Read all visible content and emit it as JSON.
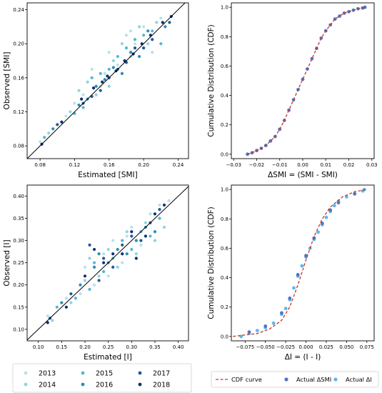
{
  "chart_data": [
    {
      "type": "scatter",
      "xlabel": "Estimated [SMI]",
      "ylabel": "Observed [SMI]",
      "xlim": [
        0.065,
        0.252
      ],
      "ylim": [
        0.065,
        0.248
      ],
      "xticks": [
        "0.08",
        "0.12",
        "0.16",
        "0.20",
        "0.24"
      ],
      "yticks": [
        "0.08",
        "0.12",
        "0.16",
        "0.20",
        "0.24"
      ],
      "reference_line": "y = x",
      "grid": false,
      "series": [
        {
          "name": "2013",
          "color": "#b8e2e9",
          "points": [
            [
              0.08,
              0.085
            ],
            [
              0.11,
              0.115
            ],
            [
              0.13,
              0.14
            ],
            [
              0.14,
              0.17
            ],
            [
              0.15,
              0.15
            ],
            [
              0.16,
              0.19
            ],
            [
              0.17,
              0.175
            ],
            [
              0.18,
              0.21
            ],
            [
              0.19,
              0.2
            ],
            [
              0.2,
              0.22
            ],
            [
              0.21,
              0.19
            ],
            [
              0.22,
              0.23
            ],
            [
              0.12,
              0.13
            ],
            [
              0.155,
              0.165
            ],
            [
              0.185,
              0.215
            ]
          ]
        },
        {
          "name": "2014",
          "color": "#8fd4e0",
          "points": [
            [
              0.09,
              0.095
            ],
            [
              0.115,
              0.12
            ],
            [
              0.135,
              0.155
            ],
            [
              0.145,
              0.14
            ],
            [
              0.165,
              0.18
            ],
            [
              0.175,
              0.2
            ],
            [
              0.185,
              0.185
            ],
            [
              0.195,
              0.22
            ],
            [
              0.205,
              0.2
            ],
            [
              0.215,
              0.225
            ],
            [
              0.125,
              0.145
            ],
            [
              0.16,
              0.15
            ]
          ]
        },
        {
          "name": "2015",
          "color": "#52b7d6",
          "points": [
            [
              0.085,
              0.09
            ],
            [
              0.12,
              0.118
            ],
            [
              0.14,
              0.16
            ],
            [
              0.15,
              0.165
            ],
            [
              0.16,
              0.17
            ],
            [
              0.17,
              0.185
            ],
            [
              0.18,
              0.195
            ],
            [
              0.19,
              0.205
            ],
            [
              0.2,
              0.21
            ],
            [
              0.21,
              0.215
            ],
            [
              0.22,
              0.2
            ],
            [
              0.13,
              0.125
            ]
          ]
        },
        {
          "name": "2016",
          "color": "#2a8db5",
          "points": [
            [
              0.095,
              0.1
            ],
            [
              0.125,
              0.128
            ],
            [
              0.145,
              0.15
            ],
            [
              0.155,
              0.158
            ],
            [
              0.165,
              0.172
            ],
            [
              0.175,
              0.165
            ],
            [
              0.185,
              0.19
            ],
            [
              0.195,
              0.185
            ],
            [
              0.205,
              0.215
            ],
            [
              0.225,
              0.22
            ],
            [
              0.135,
              0.135
            ]
          ]
        },
        {
          "name": "2017",
          "color": "#1f5a96",
          "points": [
            [
              0.1,
              0.105
            ],
            [
              0.13,
              0.13
            ],
            [
              0.15,
              0.145
            ],
            [
              0.16,
              0.16
            ],
            [
              0.17,
              0.17
            ],
            [
              0.18,
              0.178
            ],
            [
              0.19,
              0.195
            ],
            [
              0.2,
              0.195
            ],
            [
              0.21,
              0.205
            ],
            [
              0.23,
              0.225
            ],
            [
              0.14,
              0.138
            ]
          ]
        },
        {
          "name": "2018",
          "color": "#0f2f74",
          "points": [
            [
              0.082,
              0.082
            ],
            [
              0.105,
              0.108
            ],
            [
              0.128,
              0.135
            ],
            [
              0.142,
              0.148
            ],
            [
              0.158,
              0.162
            ],
            [
              0.168,
              0.168
            ],
            [
              0.178,
              0.18
            ],
            [
              0.188,
              0.188
            ],
            [
              0.198,
              0.2
            ],
            [
              0.208,
              0.21
            ],
            [
              0.222,
              0.225
            ],
            [
              0.232,
              0.232
            ],
            [
              0.152,
              0.155
            ]
          ]
        }
      ]
    },
    {
      "type": "line",
      "xlabel": "ΔSMI = (SMI - SMI)",
      "ylabel": "Cumulative Distribution (CDF)",
      "xlim": [
        -0.031,
        0.031
      ],
      "ylim": [
        -0.03,
        1.03
      ],
      "xticks": [
        "−0.03",
        "−0.02",
        "−0.01",
        "0.00",
        "0.01",
        "0.02",
        "0.03"
      ],
      "yticks": [
        "0.0",
        "0.2",
        "0.4",
        "0.6",
        "0.8",
        "1.0"
      ],
      "series": [
        {
          "name": "Actual ΔSMI",
          "color": "#4f75c7",
          "style": "dots",
          "x": [
            -0.024,
            -0.022,
            -0.02,
            -0.018,
            -0.016,
            -0.014,
            -0.012,
            -0.01,
            -0.008,
            -0.006,
            -0.004,
            -0.002,
            0.0,
            0.002,
            0.004,
            0.006,
            0.008,
            0.01,
            0.012,
            0.014,
            0.016,
            0.018,
            0.02,
            0.022,
            0.024,
            0.026,
            0.027
          ],
          "y": [
            0.0,
            0.01,
            0.025,
            0.04,
            0.06,
            0.09,
            0.12,
            0.17,
            0.23,
            0.3,
            0.37,
            0.44,
            0.51,
            0.58,
            0.65,
            0.72,
            0.79,
            0.84,
            0.88,
            0.92,
            0.94,
            0.96,
            0.97,
            0.98,
            0.99,
            0.995,
            1.0
          ]
        },
        {
          "name": "CDF curve",
          "color": "#c0392b",
          "style": "dashed",
          "x": [
            -0.024,
            -0.022,
            -0.02,
            -0.018,
            -0.016,
            -0.014,
            -0.012,
            -0.01,
            -0.008,
            -0.006,
            -0.004,
            -0.002,
            0.0,
            0.002,
            0.004,
            0.006,
            0.008,
            0.01,
            0.012,
            0.014,
            0.016,
            0.018,
            0.02,
            0.022,
            0.024,
            0.026,
            0.027
          ],
          "y": [
            0.0,
            0.01,
            0.025,
            0.04,
            0.06,
            0.09,
            0.12,
            0.17,
            0.23,
            0.3,
            0.37,
            0.44,
            0.51,
            0.58,
            0.65,
            0.72,
            0.79,
            0.84,
            0.88,
            0.92,
            0.94,
            0.96,
            0.97,
            0.98,
            0.99,
            0.995,
            1.0
          ]
        }
      ]
    },
    {
      "type": "scatter",
      "xlabel": "Estimated [I]",
      "ylabel": "Observed [I]",
      "xlim": [
        0.076,
        0.422
      ],
      "ylim": [
        0.074,
        0.425
      ],
      "xticks": [
        "0.10",
        "0.15",
        "0.20",
        "0.25",
        "0.30",
        "0.35",
        "0.40"
      ],
      "yticks": [
        "0.10",
        "0.15",
        "0.20",
        "0.25",
        "0.30",
        "0.35",
        "0.40"
      ],
      "reference_line": "y = x",
      "grid": false,
      "series": [
        {
          "name": "2013",
          "color": "#b8e2e9",
          "points": [
            [
              0.12,
              0.13
            ],
            [
              0.16,
              0.17
            ],
            [
              0.2,
              0.24
            ],
            [
              0.22,
              0.2
            ],
            [
              0.24,
              0.27
            ],
            [
              0.26,
              0.3
            ],
            [
              0.28,
              0.25
            ],
            [
              0.3,
              0.33
            ],
            [
              0.32,
              0.29
            ],
            [
              0.34,
              0.36
            ],
            [
              0.36,
              0.38
            ],
            [
              0.38,
              0.39
            ],
            [
              0.19,
              0.18
            ],
            [
              0.25,
              0.22
            ],
            [
              0.29,
              0.31
            ]
          ]
        },
        {
          "name": "2014",
          "color": "#8fd4e0",
          "points": [
            [
              0.13,
              0.12
            ],
            [
              0.17,
              0.16
            ],
            [
              0.21,
              0.26
            ],
            [
              0.23,
              0.22
            ],
            [
              0.25,
              0.28
            ],
            [
              0.27,
              0.24
            ],
            [
              0.29,
              0.32
            ],
            [
              0.31,
              0.27
            ],
            [
              0.33,
              0.34
            ],
            [
              0.35,
              0.3
            ],
            [
              0.37,
              0.33
            ],
            [
              0.2,
              0.21
            ]
          ]
        },
        {
          "name": "2015",
          "color": "#52b7d6",
          "points": [
            [
              0.14,
              0.15
            ],
            [
              0.18,
              0.17
            ],
            [
              0.22,
              0.25
            ],
            [
              0.24,
              0.23
            ],
            [
              0.26,
              0.26
            ],
            [
              0.28,
              0.3
            ],
            [
              0.3,
              0.28
            ],
            [
              0.32,
              0.32
            ],
            [
              0.34,
              0.31
            ],
            [
              0.36,
              0.35
            ],
            [
              0.21,
              0.19
            ]
          ]
        },
        {
          "name": "2016",
          "color": "#2a8db5",
          "points": [
            [
              0.15,
              0.16
            ],
            [
              0.19,
              0.2
            ],
            [
              0.23,
              0.27
            ],
            [
              0.25,
              0.25
            ],
            [
              0.27,
              0.28
            ],
            [
              0.29,
              0.27
            ],
            [
              0.31,
              0.3
            ],
            [
              0.33,
              0.33
            ],
            [
              0.35,
              0.32
            ],
            [
              0.22,
              0.24
            ]
          ]
        },
        {
          "name": "2017",
          "color": "#1f5a96",
          "points": [
            [
              0.125,
              0.125
            ],
            [
              0.17,
              0.18
            ],
            [
              0.21,
              0.29
            ],
            [
              0.24,
              0.26
            ],
            [
              0.26,
              0.24
            ],
            [
              0.28,
              0.29
            ],
            [
              0.3,
              0.31
            ],
            [
              0.32,
              0.3
            ],
            [
              0.34,
              0.34
            ],
            [
              0.36,
              0.37
            ],
            [
              0.23,
              0.21
            ]
          ]
        },
        {
          "name": "2018",
          "color": "#0f2f74",
          "points": [
            [
              0.12,
              0.115
            ],
            [
              0.16,
              0.15
            ],
            [
              0.2,
              0.22
            ],
            [
              0.22,
              0.28
            ],
            [
              0.24,
              0.25
            ],
            [
              0.26,
              0.27
            ],
            [
              0.28,
              0.27
            ],
            [
              0.3,
              0.32
            ],
            [
              0.31,
              0.26
            ],
            [
              0.33,
              0.31
            ],
            [
              0.35,
              0.36
            ],
            [
              0.37,
              0.38
            ]
          ]
        }
      ]
    },
    {
      "type": "line",
      "xlabel": "ΔI = (I - I)",
      "ylabel": "Cumulative Distribution (CDF)",
      "xlim": [
        -0.092,
        0.084
      ],
      "ylim": [
        -0.03,
        1.03
      ],
      "xticks": [
        "−0.075",
        "−0.050",
        "−0.025",
        "0.000",
        "0.025",
        "0.050",
        "0.075"
      ],
      "yticks": [
        "0.0",
        "0.2",
        "0.4",
        "0.6",
        "0.8",
        "1.0"
      ],
      "series": [
        {
          "name": "Actual ΔI",
          "color": "#5bb8f0",
          "style": "dots",
          "x": [
            -0.08,
            -0.07,
            -0.06,
            -0.05,
            -0.04,
            -0.03,
            -0.025,
            -0.02,
            -0.015,
            -0.01,
            -0.005,
            0.0,
            0.005,
            0.01,
            0.015,
            0.02,
            0.025,
            0.03,
            0.035,
            0.04,
            0.05,
            0.06,
            0.07,
            0.072
          ],
          "y": [
            0.0,
            0.02,
            0.04,
            0.06,
            0.09,
            0.15,
            0.19,
            0.25,
            0.33,
            0.41,
            0.48,
            0.54,
            0.6,
            0.66,
            0.71,
            0.76,
            0.81,
            0.85,
            0.89,
            0.92,
            0.95,
            0.97,
            0.99,
            1.0
          ]
        },
        {
          "name": "Actual ΔSMI",
          "color": "#4f75c7",
          "style": "dots",
          "x": [
            -0.07,
            -0.05,
            -0.03,
            -0.02,
            -0.01,
            0.0,
            0.01,
            0.02,
            0.03,
            0.04,
            0.06
          ],
          "y": [
            0.03,
            0.07,
            0.16,
            0.26,
            0.42,
            0.55,
            0.67,
            0.77,
            0.86,
            0.91,
            0.97
          ]
        },
        {
          "name": "CDF curve",
          "color": "#c0392b",
          "style": "dashed",
          "x": [
            -0.09,
            -0.075,
            -0.06,
            -0.045,
            -0.03,
            -0.02,
            -0.01,
            0.0,
            0.01,
            0.02,
            0.03,
            0.045,
            0.06,
            0.075
          ],
          "y": [
            0.0,
            0.01,
            0.02,
            0.05,
            0.11,
            0.2,
            0.35,
            0.52,
            0.68,
            0.8,
            0.88,
            0.95,
            0.985,
            1.0
          ]
        }
      ]
    }
  ],
  "legends": {
    "years": [
      {
        "label": "2013",
        "color": "#b8e2e9"
      },
      {
        "label": "2014",
        "color": "#8fd4e0"
      },
      {
        "label": "2015",
        "color": "#52b7d6"
      },
      {
        "label": "2016",
        "color": "#2a8db5"
      },
      {
        "label": "2017",
        "color": "#1f5a96"
      },
      {
        "label": "2018",
        "color": "#0f2f74"
      }
    ],
    "cdf": [
      {
        "label": "CDF curve",
        "color": "#c0392b",
        "style": "dashed"
      },
      {
        "label": "Actual ΔSMI",
        "color": "#4f75c7",
        "style": "dot"
      },
      {
        "label": "Actual ΔI",
        "color": "#5bb8f0",
        "style": "dot"
      }
    ]
  }
}
